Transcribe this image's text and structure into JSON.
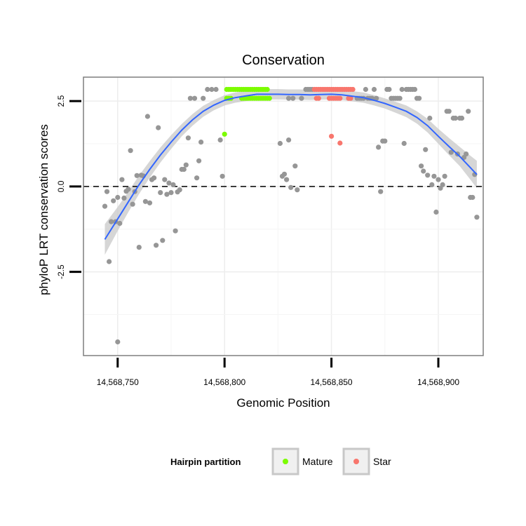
{
  "chart_data": {
    "type": "scatter",
    "title": "Conservation",
    "xlabel": "Genomic Position",
    "ylabel": "phyloP LRT conservation scores",
    "xlim": [
      14568734,
      14568921
    ],
    "ylim": [
      -4.95,
      3.2
    ],
    "x_ticks": [
      {
        "value": 14568750,
        "label": "14,568,750"
      },
      {
        "value": 14568800,
        "label": "14,568,800"
      },
      {
        "value": 14568850,
        "label": "14,568,850"
      },
      {
        "value": 14568900,
        "label": "14,568,900"
      }
    ],
    "y_ticks": [
      {
        "value": -2.5,
        "label": "-2.5"
      },
      {
        "value": 0,
        "label": "0.0"
      },
      {
        "value": 2.5,
        "label": "2.5"
      }
    ],
    "grid": true,
    "reference_line": {
      "y": 0,
      "style": "dashed"
    },
    "legend": {
      "title": "Hairpin partition",
      "placement": "bottom",
      "entries": [
        {
          "label": "Mature",
          "color": "#7cfc00"
        },
        {
          "label": "Star",
          "color": "#f8766d"
        }
      ]
    },
    "colors": {
      "other": "#969696",
      "smooth": "#3366ff",
      "band": "#c8c8c8"
    },
    "series": [
      {
        "name": "Mature",
        "color": "#7cfc00",
        "points": [
          [
            14568800,
            1.53
          ],
          [
            14568801,
            2.58
          ],
          [
            14568802,
            2.58
          ],
          [
            14568803,
            2.58
          ],
          [
            14568801,
            2.84
          ],
          [
            14568802,
            2.84
          ],
          [
            14568803,
            2.84
          ],
          [
            14568804,
            2.84
          ],
          [
            14568805,
            2.84
          ],
          [
            14568806,
            2.84
          ],
          [
            14568807,
            2.84
          ],
          [
            14568808,
            2.84
          ],
          [
            14568809,
            2.84
          ],
          [
            14568810,
            2.84
          ],
          [
            14568811,
            2.84
          ],
          [
            14568812,
            2.84
          ],
          [
            14568813,
            2.84
          ],
          [
            14568814,
            2.84
          ],
          [
            14568815,
            2.84
          ],
          [
            14568816,
            2.84
          ],
          [
            14568817,
            2.84
          ],
          [
            14568818,
            2.84
          ],
          [
            14568819,
            2.84
          ],
          [
            14568820,
            2.84
          ],
          [
            14568808,
            2.58
          ],
          [
            14568809,
            2.58
          ],
          [
            14568810,
            2.58
          ],
          [
            14568811,
            2.58
          ],
          [
            14568812,
            2.58
          ],
          [
            14568813,
            2.58
          ],
          [
            14568814,
            2.58
          ],
          [
            14568815,
            2.58
          ],
          [
            14568816,
            2.58
          ],
          [
            14568817,
            2.58
          ],
          [
            14568818,
            2.58
          ],
          [
            14568819,
            2.58
          ],
          [
            14568820,
            2.58
          ],
          [
            14568821,
            2.58
          ]
        ]
      },
      {
        "name": "Star",
        "color": "#f8766d",
        "points": [
          [
            14568842,
            2.84
          ],
          [
            14568843,
            2.84
          ],
          [
            14568844,
            2.84
          ],
          [
            14568845,
            2.84
          ],
          [
            14568846,
            2.84
          ],
          [
            14568847,
            2.84
          ],
          [
            14568848,
            2.84
          ],
          [
            14568849,
            2.84
          ],
          [
            14568850,
            2.84
          ],
          [
            14568851,
            2.84
          ],
          [
            14568852,
            2.84
          ],
          [
            14568853,
            2.84
          ],
          [
            14568854,
            2.84
          ],
          [
            14568855,
            2.84
          ],
          [
            14568856,
            2.84
          ],
          [
            14568857,
            2.84
          ],
          [
            14568858,
            2.84
          ],
          [
            14568859,
            2.84
          ],
          [
            14568860,
            2.84
          ],
          [
            14568843,
            2.58
          ],
          [
            14568844,
            2.58
          ],
          [
            14568849,
            2.58
          ],
          [
            14568850,
            2.58
          ],
          [
            14568851,
            2.58
          ],
          [
            14568852,
            2.58
          ],
          [
            14568853,
            2.58
          ],
          [
            14568854,
            2.58
          ],
          [
            14568858,
            2.58
          ],
          [
            14568859,
            2.58
          ],
          [
            14568850,
            1.47
          ],
          [
            14568854,
            1.27
          ]
        ]
      },
      {
        "name": "",
        "color": "#969696",
        "points": [
          [
            14568744,
            -0.58
          ],
          [
            14568745,
            -0.15
          ],
          [
            14568746,
            -2.2
          ],
          [
            14568747,
            -1.03
          ],
          [
            14568748,
            -0.42
          ],
          [
            14568749,
            -1.03
          ],
          [
            14568750,
            -0.32
          ],
          [
            14568751,
            -1.08
          ],
          [
            14568752,
            0.2
          ],
          [
            14568753,
            -0.34
          ],
          [
            14568754,
            -0.14
          ],
          [
            14568755,
            -0.08
          ],
          [
            14568756,
            1.05
          ],
          [
            14568757,
            -0.52
          ],
          [
            14568758,
            -0.15
          ],
          [
            14568759,
            0.32
          ],
          [
            14568760,
            -1.78
          ],
          [
            14568761,
            0.33
          ],
          [
            14568762,
            0.31
          ],
          [
            14568763,
            -0.44
          ],
          [
            14568764,
            2.05
          ],
          [
            14568765,
            -0.48
          ],
          [
            14568766,
            0.2
          ],
          [
            14568767,
            0.25
          ],
          [
            14568768,
            -1.72
          ],
          [
            14568769,
            1.72
          ],
          [
            14568770,
            -0.18
          ],
          [
            14568771,
            -1.58
          ],
          [
            14568772,
            0.2
          ],
          [
            14568773,
            -0.23
          ],
          [
            14568774,
            0.1
          ],
          [
            14568775,
            -0.18
          ],
          [
            14568776,
            0.05
          ],
          [
            14568777,
            -1.3
          ],
          [
            14568778,
            -0.16
          ],
          [
            14568779,
            -0.1
          ],
          [
            14568780,
            0.5
          ],
          [
            14568781,
            0.5
          ],
          [
            14568782,
            0.63
          ],
          [
            14568783,
            1.42
          ],
          [
            14568784,
            2.58
          ],
          [
            14568786,
            2.58
          ],
          [
            14568787,
            0.25
          ],
          [
            14568788,
            0.75
          ],
          [
            14568789,
            1.3
          ],
          [
            14568790,
            2.58
          ],
          [
            14568792,
            2.84
          ],
          [
            14568794,
            2.84
          ],
          [
            14568796,
            2.84
          ],
          [
            14568798,
            1.36
          ],
          [
            14568799,
            0.3
          ],
          [
            14568826,
            1.26
          ],
          [
            14568827,
            0.3
          ],
          [
            14568828,
            0.36
          ],
          [
            14568829,
            0.2
          ],
          [
            14568830,
            1.36
          ],
          [
            14568830,
            2.58
          ],
          [
            14568831,
            -0.03
          ],
          [
            14568832,
            2.58
          ],
          [
            14568833,
            0.6
          ],
          [
            14568834,
            -0.1
          ],
          [
            14568836,
            2.58
          ],
          [
            14568838,
            2.84
          ],
          [
            14568839,
            2.84
          ],
          [
            14568840,
            2.84
          ],
          [
            14568841,
            2.84
          ],
          [
            14568862,
            2.58
          ],
          [
            14568863,
            2.58
          ],
          [
            14568864,
            2.58
          ],
          [
            14568865,
            2.58
          ],
          [
            14568866,
            2.84
          ],
          [
            14568867,
            2.58
          ],
          [
            14568868,
            2.58
          ],
          [
            14568869,
            2.58
          ],
          [
            14568870,
            2.84
          ],
          [
            14568871,
            2.58
          ],
          [
            14568872,
            1.15
          ],
          [
            14568873,
            -0.15
          ],
          [
            14568874,
            1.33
          ],
          [
            14568875,
            1.33
          ],
          [
            14568876,
            2.84
          ],
          [
            14568877,
            2.84
          ],
          [
            14568878,
            2.58
          ],
          [
            14568879,
            2.58
          ],
          [
            14568880,
            2.58
          ],
          [
            14568881,
            2.58
          ],
          [
            14568882,
            2.58
          ],
          [
            14568883,
            2.84
          ],
          [
            14568884,
            1.26
          ],
          [
            14568885,
            2.84
          ],
          [
            14568886,
            2.84
          ],
          [
            14568887,
            2.84
          ],
          [
            14568888,
            2.84
          ],
          [
            14568889,
            2.84
          ],
          [
            14568890,
            2.58
          ],
          [
            14568891,
            2.58
          ],
          [
            14568892,
            0.6
          ],
          [
            14568893,
            0.45
          ],
          [
            14568894,
            1.08
          ],
          [
            14568895,
            0.33
          ],
          [
            14568896,
            2.0
          ],
          [
            14568897,
            0.05
          ],
          [
            14568898,
            0.3
          ],
          [
            14568899,
            -0.75
          ],
          [
            14568900,
            0.2
          ],
          [
            14568901,
            -0.05
          ],
          [
            14568902,
            0.05
          ],
          [
            14568903,
            0.3
          ],
          [
            14568904,
            2.2
          ],
          [
            14568905,
            2.2
          ],
          [
            14568906,
            1.0
          ],
          [
            14568907,
            2.0
          ],
          [
            14568908,
            2.0
          ],
          [
            14568909,
            0.95
          ],
          [
            14568910,
            2.0
          ],
          [
            14568911,
            2.0
          ],
          [
            14568912,
            0.85
          ],
          [
            14568913,
            0.95
          ],
          [
            14568914,
            2.2
          ],
          [
            14568915,
            -0.32
          ],
          [
            14568916,
            -0.32
          ],
          [
            14568917,
            0.35
          ],
          [
            14568918,
            -0.9
          ],
          [
            14568750,
            -4.55
          ]
        ]
      }
    ],
    "smooth": {
      "points": [
        [
          14568744,
          -1.55
        ],
        [
          14568750,
          -0.95
        ],
        [
          14568755,
          -0.45
        ],
        [
          14568760,
          0.05
        ],
        [
          14568765,
          0.5
        ],
        [
          14568770,
          0.92
        ],
        [
          14568775,
          1.3
        ],
        [
          14568780,
          1.65
        ],
        [
          14568785,
          1.95
        ],
        [
          14568790,
          2.2
        ],
        [
          14568795,
          2.38
        ],
        [
          14568800,
          2.52
        ],
        [
          14568805,
          2.6
        ],
        [
          14568810,
          2.65
        ],
        [
          14568815,
          2.7
        ],
        [
          14568820,
          2.7
        ],
        [
          14568825,
          2.7
        ],
        [
          14568830,
          2.69
        ],
        [
          14568835,
          2.69
        ],
        [
          14568840,
          2.68
        ],
        [
          14568845,
          2.69
        ],
        [
          14568850,
          2.7
        ],
        [
          14568855,
          2.68
        ],
        [
          14568860,
          2.64
        ],
        [
          14568865,
          2.6
        ],
        [
          14568870,
          2.52
        ],
        [
          14568875,
          2.43
        ],
        [
          14568880,
          2.32
        ],
        [
          14568885,
          2.2
        ],
        [
          14568890,
          2.02
        ],
        [
          14568895,
          1.78
        ],
        [
          14568900,
          1.47
        ],
        [
          14568905,
          1.17
        ],
        [
          14568910,
          0.88
        ],
        [
          14568915,
          0.55
        ],
        [
          14568918,
          0.35
        ]
      ],
      "band_halfwidth": [
        0.45,
        0.35,
        0.3,
        0.27,
        0.24,
        0.22,
        0.2,
        0.18,
        0.17,
        0.16,
        0.15,
        0.15,
        0.15,
        0.15,
        0.15,
        0.15,
        0.15,
        0.15,
        0.15,
        0.15,
        0.15,
        0.15,
        0.15,
        0.15,
        0.15,
        0.15,
        0.15,
        0.16,
        0.17,
        0.18,
        0.2,
        0.22,
        0.25,
        0.28,
        0.35,
        0.4
      ]
    }
  }
}
